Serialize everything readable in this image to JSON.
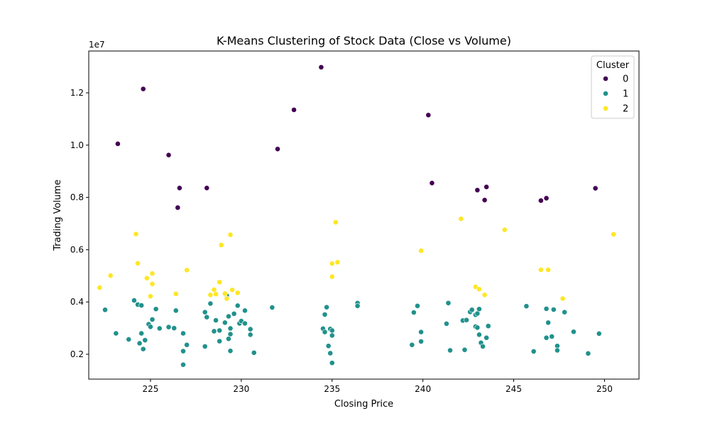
{
  "chart_data": {
    "type": "scatter",
    "title": "K-Means Clustering of Stock Data (Close vs Volume)",
    "xlabel": "Closing Price",
    "ylabel": "Trading Volume",
    "y_offset_text": "1e7",
    "xlim": [
      221.6,
      251.9
    ],
    "ylim": [
      1050000,
      13600000
    ],
    "x_ticks": [
      225,
      230,
      235,
      240,
      245,
      250
    ],
    "x_tick_labels": [
      "225",
      "230",
      "235",
      "240",
      "245",
      "250"
    ],
    "y_ticks": [
      2000000,
      4000000,
      6000000,
      8000000,
      10000000,
      12000000
    ],
    "y_tick_labels": [
      "0.2",
      "0.4",
      "0.6",
      "0.8",
      "1.0",
      "1.2"
    ],
    "grid": false,
    "legend": {
      "title": "Cluster",
      "placement": "top-right"
    },
    "series": [
      {
        "name": "0",
        "color": "#440154",
        "points": [
          [
            223.2,
            10050000
          ],
          [
            224.6,
            12150000
          ],
          [
            226.0,
            9620000
          ],
          [
            226.6,
            8360000
          ],
          [
            226.5,
            7610000
          ],
          [
            228.1,
            8360000
          ],
          [
            232.0,
            9850000
          ],
          [
            232.9,
            11350000
          ],
          [
            234.4,
            12980000
          ],
          [
            240.3,
            11150000
          ],
          [
            240.5,
            8550000
          ],
          [
            243.0,
            8280000
          ],
          [
            243.5,
            8400000
          ],
          [
            243.4,
            7900000
          ],
          [
            246.5,
            7880000
          ],
          [
            246.8,
            7970000
          ],
          [
            249.5,
            8350000
          ]
        ]
      },
      {
        "name": "1",
        "color": "#21918c",
        "points": [
          [
            222.5,
            3700000
          ],
          [
            223.1,
            2800000
          ],
          [
            223.8,
            2570000
          ],
          [
            224.1,
            4060000
          ],
          [
            224.3,
            3900000
          ],
          [
            224.5,
            3870000
          ],
          [
            224.4,
            2420000
          ],
          [
            224.5,
            2800000
          ],
          [
            224.7,
            2540000
          ],
          [
            224.6,
            2200000
          ],
          [
            224.9,
            3150000
          ],
          [
            225.0,
            3050000
          ],
          [
            225.1,
            3330000
          ],
          [
            225.3,
            3730000
          ],
          [
            225.5,
            2990000
          ],
          [
            226.0,
            3040000
          ],
          [
            226.3,
            3000000
          ],
          [
            226.4,
            3670000
          ],
          [
            226.8,
            2800000
          ],
          [
            226.8,
            2120000
          ],
          [
            226.8,
            1600000
          ],
          [
            227.0,
            2360000
          ],
          [
            228.0,
            3610000
          ],
          [
            228.1,
            3420000
          ],
          [
            228.0,
            2300000
          ],
          [
            228.3,
            3940000
          ],
          [
            228.5,
            2880000
          ],
          [
            228.6,
            3300000
          ],
          [
            228.8,
            2910000
          ],
          [
            228.8,
            2500000
          ],
          [
            229.1,
            3210000
          ],
          [
            229.2,
            4240000
          ],
          [
            229.3,
            3450000
          ],
          [
            229.3,
            2590000
          ],
          [
            229.4,
            2990000
          ],
          [
            229.4,
            2770000
          ],
          [
            229.4,
            2130000
          ],
          [
            229.6,
            3550000
          ],
          [
            229.8,
            3860000
          ],
          [
            229.9,
            3180000
          ],
          [
            230.0,
            3270000
          ],
          [
            230.2,
            3670000
          ],
          [
            230.2,
            3180000
          ],
          [
            230.5,
            2960000
          ],
          [
            230.5,
            2750000
          ],
          [
            230.7,
            2060000
          ],
          [
            231.7,
            3790000
          ],
          [
            234.5,
            2980000
          ],
          [
            234.6,
            2850000
          ],
          [
            234.6,
            3520000
          ],
          [
            234.7,
            3800000
          ],
          [
            234.8,
            2320000
          ],
          [
            234.9,
            2040000
          ],
          [
            234.9,
            2970000
          ],
          [
            235.0,
            2910000
          ],
          [
            235.0,
            2720000
          ],
          [
            235.0,
            1670000
          ],
          [
            236.4,
            3960000
          ],
          [
            236.4,
            3850000
          ],
          [
            239.4,
            2360000
          ],
          [
            239.5,
            3600000
          ],
          [
            239.7,
            3850000
          ],
          [
            239.9,
            2490000
          ],
          [
            239.9,
            2850000
          ],
          [
            241.3,
            3170000
          ],
          [
            241.4,
            3960000
          ],
          [
            241.5,
            2150000
          ],
          [
            242.2,
            3290000
          ],
          [
            242.3,
            2170000
          ],
          [
            242.4,
            3310000
          ],
          [
            242.6,
            3620000
          ],
          [
            242.7,
            3700000
          ],
          [
            242.9,
            3510000
          ],
          [
            242.9,
            3060000
          ],
          [
            243.0,
            3020000
          ],
          [
            243.0,
            3560000
          ],
          [
            243.1,
            2750000
          ],
          [
            243.1,
            3730000
          ],
          [
            243.2,
            2440000
          ],
          [
            243.3,
            2300000
          ],
          [
            243.5,
            2630000
          ],
          [
            243.6,
            3080000
          ],
          [
            245.7,
            3840000
          ],
          [
            246.1,
            2110000
          ],
          [
            246.8,
            2630000
          ],
          [
            246.8,
            3740000
          ],
          [
            246.9,
            3210000
          ],
          [
            247.1,
            2680000
          ],
          [
            247.2,
            3710000
          ],
          [
            247.4,
            2320000
          ],
          [
            247.4,
            2150000
          ],
          [
            247.8,
            3610000
          ],
          [
            248.3,
            2860000
          ],
          [
            249.1,
            2030000
          ],
          [
            249.7,
            2790000
          ]
        ]
      },
      {
        "name": "2",
        "color": "#fde725",
        "points": [
          [
            222.2,
            4550000
          ],
          [
            222.8,
            5010000
          ],
          [
            224.2,
            6600000
          ],
          [
            224.3,
            5480000
          ],
          [
            224.8,
            4910000
          ],
          [
            225.0,
            4220000
          ],
          [
            225.1,
            4690000
          ],
          [
            225.1,
            5090000
          ],
          [
            226.4,
            4310000
          ],
          [
            227.0,
            5220000
          ],
          [
            228.3,
            4270000
          ],
          [
            228.5,
            4470000
          ],
          [
            228.6,
            4300000
          ],
          [
            228.8,
            4760000
          ],
          [
            228.9,
            6180000
          ],
          [
            229.1,
            4320000
          ],
          [
            229.2,
            4130000
          ],
          [
            229.4,
            6570000
          ],
          [
            229.5,
            4460000
          ],
          [
            229.8,
            4350000
          ],
          [
            235.0,
            5470000
          ],
          [
            235.0,
            4970000
          ],
          [
            235.2,
            7050000
          ],
          [
            235.3,
            5520000
          ],
          [
            239.9,
            5960000
          ],
          [
            242.1,
            7180000
          ],
          [
            242.9,
            4580000
          ],
          [
            243.1,
            4490000
          ],
          [
            243.4,
            4270000
          ],
          [
            244.5,
            6760000
          ],
          [
            246.5,
            5230000
          ],
          [
            246.9,
            5230000
          ],
          [
            247.7,
            4130000
          ],
          [
            250.5,
            6590000
          ]
        ]
      }
    ]
  }
}
